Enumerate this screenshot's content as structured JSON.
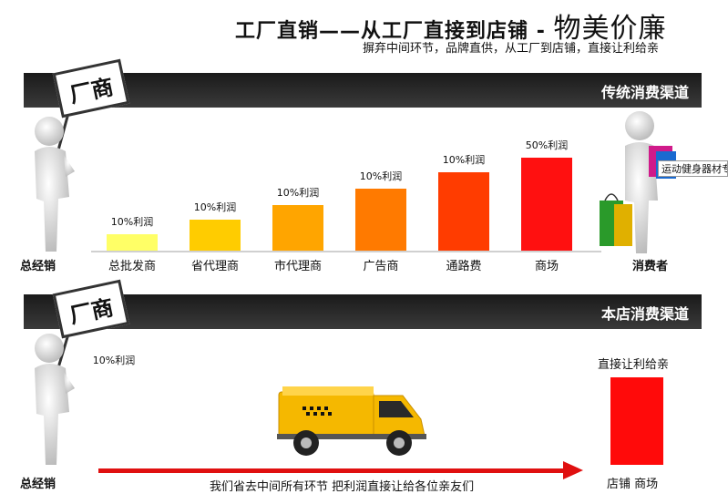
{
  "header": {
    "title_main": "工厂直销——从工厂直接到店铺",
    "title_dash": "-",
    "title_big": "物美价廉",
    "subtitle": "摒弃中间环节，品牌直供，从工厂到店铺，直接让利给亲"
  },
  "traditional": {
    "band_label": "传统消费渠道",
    "sign_text": "厂商",
    "start_label": "总经销",
    "end_label": "消费者",
    "tooltip": "运动健身器材专",
    "stages": [
      {
        "name": "总批发商",
        "profit": "10%利润",
        "level": 1,
        "color": "#ffff66"
      },
      {
        "name": "省代理商",
        "profit": "10%利润",
        "level": 2,
        "color": "#ffcc00"
      },
      {
        "name": "市代理商",
        "profit": "10%利润",
        "level": 3,
        "color": "#ffa500"
      },
      {
        "name": "广告商",
        "profit": "10%利润",
        "level": 4,
        "color": "#ff7a00"
      },
      {
        "name": "通路费",
        "profit": "10%利润",
        "level": 5,
        "color": "#ff3c00"
      },
      {
        "name": "商场",
        "profit": "50%利润",
        "level": 6,
        "color": "#ff1010"
      }
    ]
  },
  "ours": {
    "band_label": "本店消费渠道",
    "sign_text": "厂商",
    "start_label": "总经销",
    "profit_label": "10%利润",
    "end_top_label": "直接让利给亲",
    "end_label": "店铺  商场",
    "slogan": "我们省去中间所有环节  把利润直接让给各位亲友们"
  }
}
